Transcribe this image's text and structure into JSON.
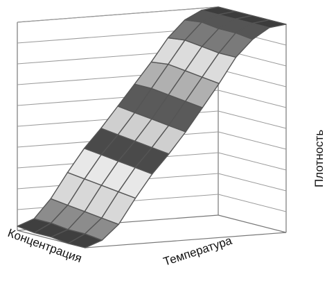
{
  "chart_data": {
    "type": "surface",
    "title": "",
    "xlabel": "Концентрация",
    "ylabel": "Температура",
    "zlabel": "Плотность",
    "x_ticks": [],
    "y_ticks": [],
    "z_ticks": [],
    "grid": "horizontal back-wall lines, no tick labels",
    "grid_size": {
      "concentration_points": 5,
      "temperature_points": 13
    },
    "surface": [
      [
        0.02,
        0.05,
        0.14,
        0.26,
        0.37,
        0.46,
        0.56,
        0.66,
        0.76,
        0.87,
        0.95,
        0.99,
        1.0
      ],
      [
        0.01,
        0.05,
        0.13,
        0.25,
        0.36,
        0.45,
        0.55,
        0.66,
        0.77,
        0.88,
        0.96,
        0.99,
        1.0
      ],
      [
        0.01,
        0.04,
        0.12,
        0.24,
        0.35,
        0.44,
        0.54,
        0.65,
        0.76,
        0.87,
        0.95,
        0.99,
        1.0
      ],
      [
        0.0,
        0.04,
        0.11,
        0.23,
        0.34,
        0.43,
        0.53,
        0.64,
        0.75,
        0.86,
        0.95,
        0.99,
        1.0
      ],
      [
        0.0,
        0.03,
        0.1,
        0.22,
        0.33,
        0.42,
        0.52,
        0.63,
        0.74,
        0.86,
        0.94,
        0.99,
        1.0
      ]
    ],
    "color_bands": [
      "#3f3f3f",
      "#8c8c8c",
      "#d8d8d8",
      "#e8e8e8",
      "#4a4a4a",
      "#cfcfcf",
      "#5a5a5a",
      "#b0b0b0",
      "#dcdcdc",
      "#7a7a7a",
      "#555555",
      "#3c3c3c"
    ]
  }
}
